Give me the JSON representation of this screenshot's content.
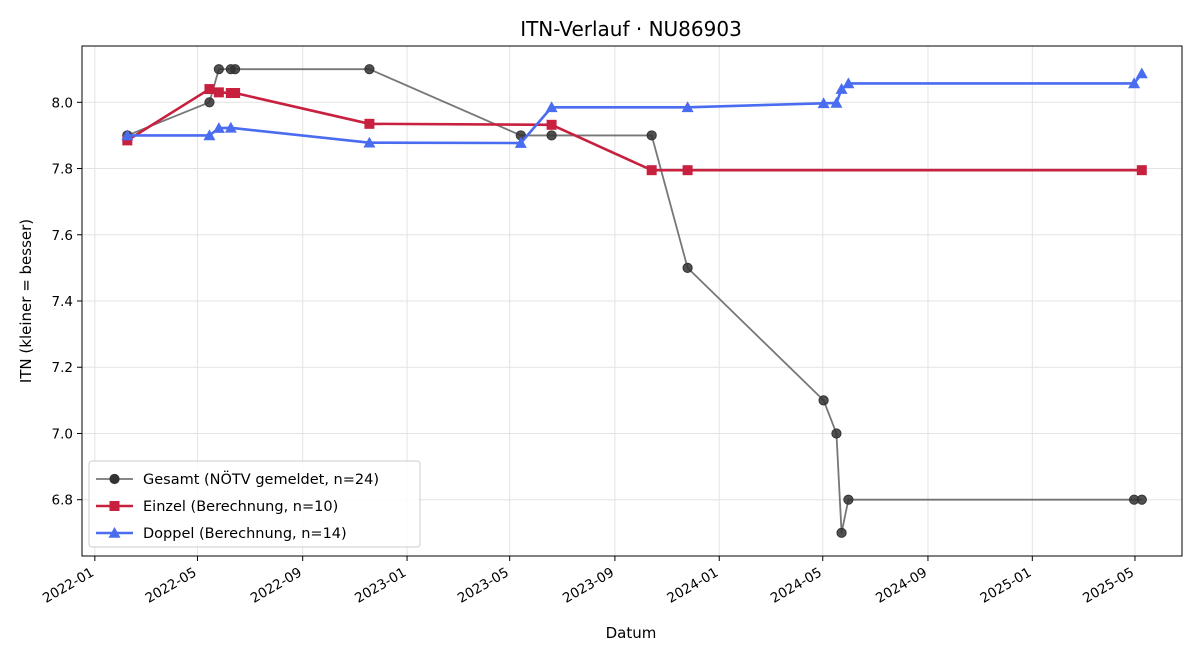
{
  "chart_data": {
    "type": "line",
    "title": "ITN-Verlauf · NU86903",
    "xlabel": "Datum",
    "ylabel": "ITN  (kleiner = besser)",
    "x_axis": {
      "type": "date",
      "range": [
        "2021-12-17",
        "2025-06-25"
      ],
      "ticks": [
        "2022-01-01",
        "2022-05-01",
        "2022-09-01",
        "2023-01-01",
        "2023-05-01",
        "2023-09-01",
        "2024-01-01",
        "2024-05-01",
        "2024-09-01",
        "2025-01-01",
        "2025-05-01"
      ],
      "tick_labels": [
        "2022-01",
        "2022-05",
        "2022-09",
        "2023-01",
        "2023-05",
        "2023-09",
        "2024-01",
        "2024-05",
        "2024-09",
        "2025-01",
        "2025-05"
      ]
    },
    "y_axis": {
      "range": [
        6.63,
        8.17
      ],
      "ticks": [
        6.8,
        7.0,
        7.2,
        7.4,
        7.6,
        7.8,
        8.0
      ],
      "tick_labels": [
        "6.8",
        "7.0",
        "7.2",
        "7.4",
        "7.6",
        "7.8",
        "8.0"
      ]
    },
    "grid": true,
    "legend_position": "lower-left",
    "series": [
      {
        "name": "Gesamt (NÖTV gemeldet, n=24)",
        "color": "#555555",
        "marker": "circle",
        "points": [
          {
            "x": "2022-02-08",
            "y": 7.9
          },
          {
            "x": "2022-05-15",
            "y": 8.0
          },
          {
            "x": "2022-05-26",
            "y": 8.1
          },
          {
            "x": "2022-06-09",
            "y": 8.1
          },
          {
            "x": "2022-06-14",
            "y": 8.1
          },
          {
            "x": "2022-11-18",
            "y": 8.1
          },
          {
            "x": "2023-05-14",
            "y": 7.9
          },
          {
            "x": "2023-06-19",
            "y": 7.9
          },
          {
            "x": "2023-10-14",
            "y": 7.9
          },
          {
            "x": "2023-11-25",
            "y": 7.5
          },
          {
            "x": "2024-05-02",
            "y": 7.1
          },
          {
            "x": "2024-05-17",
            "y": 7.0
          },
          {
            "x": "2024-05-23",
            "y": 6.7
          },
          {
            "x": "2024-05-31",
            "y": 6.8
          },
          {
            "x": "2025-04-30",
            "y": 6.8
          },
          {
            "x": "2025-05-09",
            "y": 6.8
          }
        ]
      },
      {
        "name": "Einzel (Berechnung, n=10)",
        "color": "#c8203f",
        "marker": "square",
        "points": [
          {
            "x": "2022-02-08",
            "y": 7.885
          },
          {
            "x": "2022-05-15",
            "y": 8.04
          },
          {
            "x": "2022-05-26",
            "y": 8.03
          },
          {
            "x": "2022-06-09",
            "y": 8.028
          },
          {
            "x": "2022-06-14",
            "y": 8.028
          },
          {
            "x": "2022-11-18",
            "y": 7.935
          },
          {
            "x": "2023-06-19",
            "y": 7.932
          },
          {
            "x": "2023-10-14",
            "y": 7.795
          },
          {
            "x": "2023-11-25",
            "y": 7.795
          },
          {
            "x": "2025-05-09",
            "y": 7.795
          }
        ]
      },
      {
        "name": "Doppel (Berechnung, n=14)",
        "color": "#4a6cf0",
        "marker": "triangle",
        "points": [
          {
            "x": "2022-02-08",
            "y": 7.9
          },
          {
            "x": "2022-05-15",
            "y": 7.9
          },
          {
            "x": "2022-05-26",
            "y": 7.922
          },
          {
            "x": "2022-06-09",
            "y": 7.923
          },
          {
            "x": "2022-11-18",
            "y": 7.878
          },
          {
            "x": "2023-05-14",
            "y": 7.877
          },
          {
            "x": "2023-06-19",
            "y": 7.985
          },
          {
            "x": "2023-11-25",
            "y": 7.985
          },
          {
            "x": "2024-05-02",
            "y": 7.997
          },
          {
            "x": "2024-05-17",
            "y": 7.998
          },
          {
            "x": "2024-05-23",
            "y": 8.04
          },
          {
            "x": "2024-05-31",
            "y": 8.057
          },
          {
            "x": "2025-04-30",
            "y": 8.057
          },
          {
            "x": "2025-05-09",
            "y": 8.087
          }
        ]
      }
    ]
  }
}
